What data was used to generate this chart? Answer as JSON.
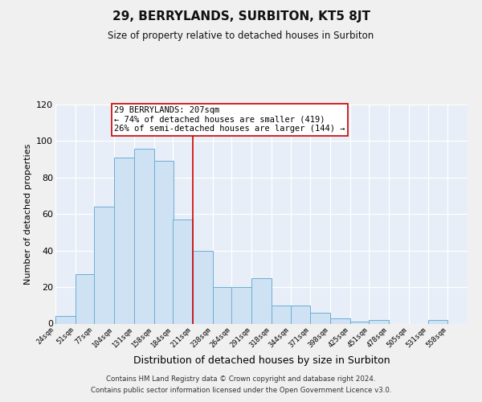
{
  "title": "29, BERRYLANDS, SURBITON, KT5 8JT",
  "subtitle": "Size of property relative to detached houses in Surbiton",
  "xlabel": "Distribution of detached houses by size in Surbiton",
  "ylabel": "Number of detached properties",
  "bar_color": "#cfe2f3",
  "bar_edge_color": "#6aaed6",
  "bins": [
    24,
    51,
    77,
    104,
    131,
    158,
    184,
    211,
    238,
    264,
    291,
    318,
    344,
    371,
    398,
    425,
    451,
    478,
    505,
    531,
    558
  ],
  "counts": [
    4,
    27,
    64,
    91,
    96,
    89,
    57,
    40,
    20,
    20,
    25,
    10,
    10,
    6,
    3,
    1,
    2,
    0,
    0,
    2,
    0
  ],
  "vline_x": 211,
  "vline_color": "#cc0000",
  "annotation_line1": "29 BERRYLANDS: 207sqm",
  "annotation_line2": "← 74% of detached houses are smaller (419)",
  "annotation_line3": "26% of semi-detached houses are larger (144) →",
  "annotation_box_color": "#ffffff",
  "annotation_box_edge": "#cc0000",
  "ylim": [
    0,
    120
  ],
  "yticks": [
    0,
    20,
    40,
    60,
    80,
    100,
    120
  ],
  "footer1": "Contains HM Land Registry data © Crown copyright and database right 2024.",
  "footer2": "Contains public sector information licensed under the Open Government Licence v3.0.",
  "background_color": "#e8eef8",
  "grid_color": "#ffffff",
  "fig_color": "#f0f0f0",
  "tick_labels": [
    "24sqm",
    "51sqm",
    "77sqm",
    "104sqm",
    "131sqm",
    "158sqm",
    "184sqm",
    "211sqm",
    "238sqm",
    "264sqm",
    "291sqm",
    "318sqm",
    "344sqm",
    "371sqm",
    "398sqm",
    "425sqm",
    "451sqm",
    "478sqm",
    "505sqm",
    "531sqm",
    "558sqm"
  ]
}
